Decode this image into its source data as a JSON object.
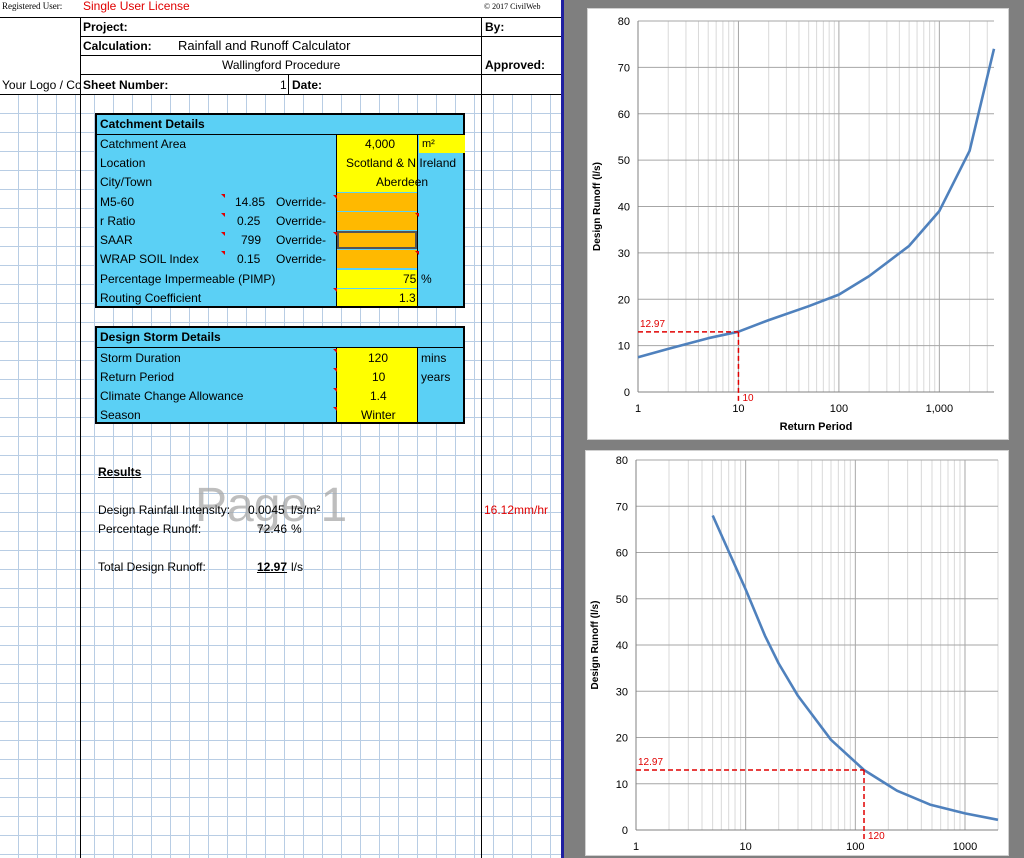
{
  "header": {
    "registered_label": "Registered User:",
    "license": "Single User License",
    "copyright": "© 2017 CivilWeb",
    "project_label": "Project:",
    "calculation_label": "Calculation:",
    "calculation_value": "Rainfall and Runoff Calculator",
    "procedure": "Wallingford Procedure",
    "logo": "Your Logo / Co",
    "sheet_number_label": "Sheet Number:",
    "sheet_number": "1",
    "date_label": "Date:",
    "by_label": "By:",
    "approved_label": "Approved:"
  },
  "catchment": {
    "title": "Catchment Details",
    "area_label": "Catchment Area",
    "area_value": "4,000",
    "area_unit": "m²",
    "location_label": "Location",
    "location_value": "Scotland & N Ireland",
    "city_label": "City/Town",
    "city_value": "Aberdeen",
    "m560_label": "M5-60",
    "m560_value": "14.85",
    "rratio_label": "r Ratio",
    "rratio_value": "0.25",
    "saar_label": "SAAR",
    "saar_value": "799",
    "wrap_label": "WRAP SOIL Index",
    "wrap_value": "0.15",
    "override_label": "Override-",
    "pimp_label": "Percentage Impermeable (PIMP)",
    "pimp_value": "75",
    "pimp_unit": "%",
    "routing_label": "Routing Coefficient",
    "routing_value": "1.3"
  },
  "storm": {
    "title": "Design Storm Details",
    "duration_label": "Storm Duration",
    "duration_value": "120",
    "duration_unit": "mins",
    "return_label": "Return Period",
    "return_value": "10",
    "return_unit": "years",
    "climate_label": "Climate Change Allowance",
    "climate_value": "1.4",
    "season_label": "Season",
    "season_value": "Winter"
  },
  "results": {
    "title": "Results",
    "intensity_label": "Design Rainfall Intensity:",
    "intensity_value": "0.0045",
    "intensity_unit": "l/s/m²",
    "intensity_alt": "16.12mm/hr",
    "runoff_pct_label": "Percentage Runoff:",
    "runoff_pct_value": "72.46",
    "runoff_pct_unit": "%",
    "total_label": "Total Design Runoff:",
    "total_value": "12.97",
    "total_unit": "l/s",
    "watermark": "Page 1"
  },
  "colors": {
    "input_yellow": "#ffff00",
    "override_orange": "#ffb900",
    "table_blue": "#5bd0f5",
    "series_blue": "#4f81bd",
    "marker_red": "#e00000"
  },
  "chart_data": [
    {
      "type": "line",
      "xlabel": "Return Period",
      "ylabel": "Design Runoff (l/s)",
      "x_scale": "log",
      "xlim": [
        1,
        3500
      ],
      "ylim": [
        0,
        80
      ],
      "x_ticks": [
        "1",
        "10",
        "100",
        "1,000",
        "10,000"
      ],
      "y_ticks": [
        "0",
        "10",
        "20",
        "30",
        "40",
        "50",
        "60",
        "70",
        "80"
      ],
      "grid": true,
      "series": [
        {
          "x": [
            1,
            2,
            5,
            10,
            20,
            50,
            100,
            200,
            500,
            1000,
            2000,
            3500
          ],
          "y": [
            7.5,
            9.3,
            11.6,
            13.0,
            15.5,
            18.5,
            21.0,
            25.0,
            31.5,
            39.0,
            52.0,
            74.0
          ]
        }
      ],
      "marker": {
        "x": 10,
        "y": 12.97,
        "x_label": "10",
        "y_label": "12.97"
      }
    },
    {
      "type": "line",
      "xlabel": "",
      "ylabel": "Design Runoff (l/s)",
      "x_scale": "log",
      "xlim": [
        1,
        2000
      ],
      "ylim": [
        0,
        80
      ],
      "x_ticks": [
        "1",
        "10",
        "100",
        "1000"
      ],
      "y_ticks": [
        "0",
        "10",
        "20",
        "30",
        "40",
        "50",
        "60",
        "70",
        "80"
      ],
      "grid": true,
      "series": [
        {
          "x": [
            5,
            10,
            15,
            20,
            30,
            60,
            120,
            240,
            480,
            1000,
            2000
          ],
          "y": [
            68.0,
            52.0,
            42.0,
            36.0,
            29.0,
            19.5,
            12.97,
            8.5,
            5.5,
            3.6,
            2.2
          ]
        }
      ],
      "marker": {
        "x": 120,
        "y": 12.97,
        "x_label": "120",
        "y_label": "12.97"
      }
    }
  ]
}
